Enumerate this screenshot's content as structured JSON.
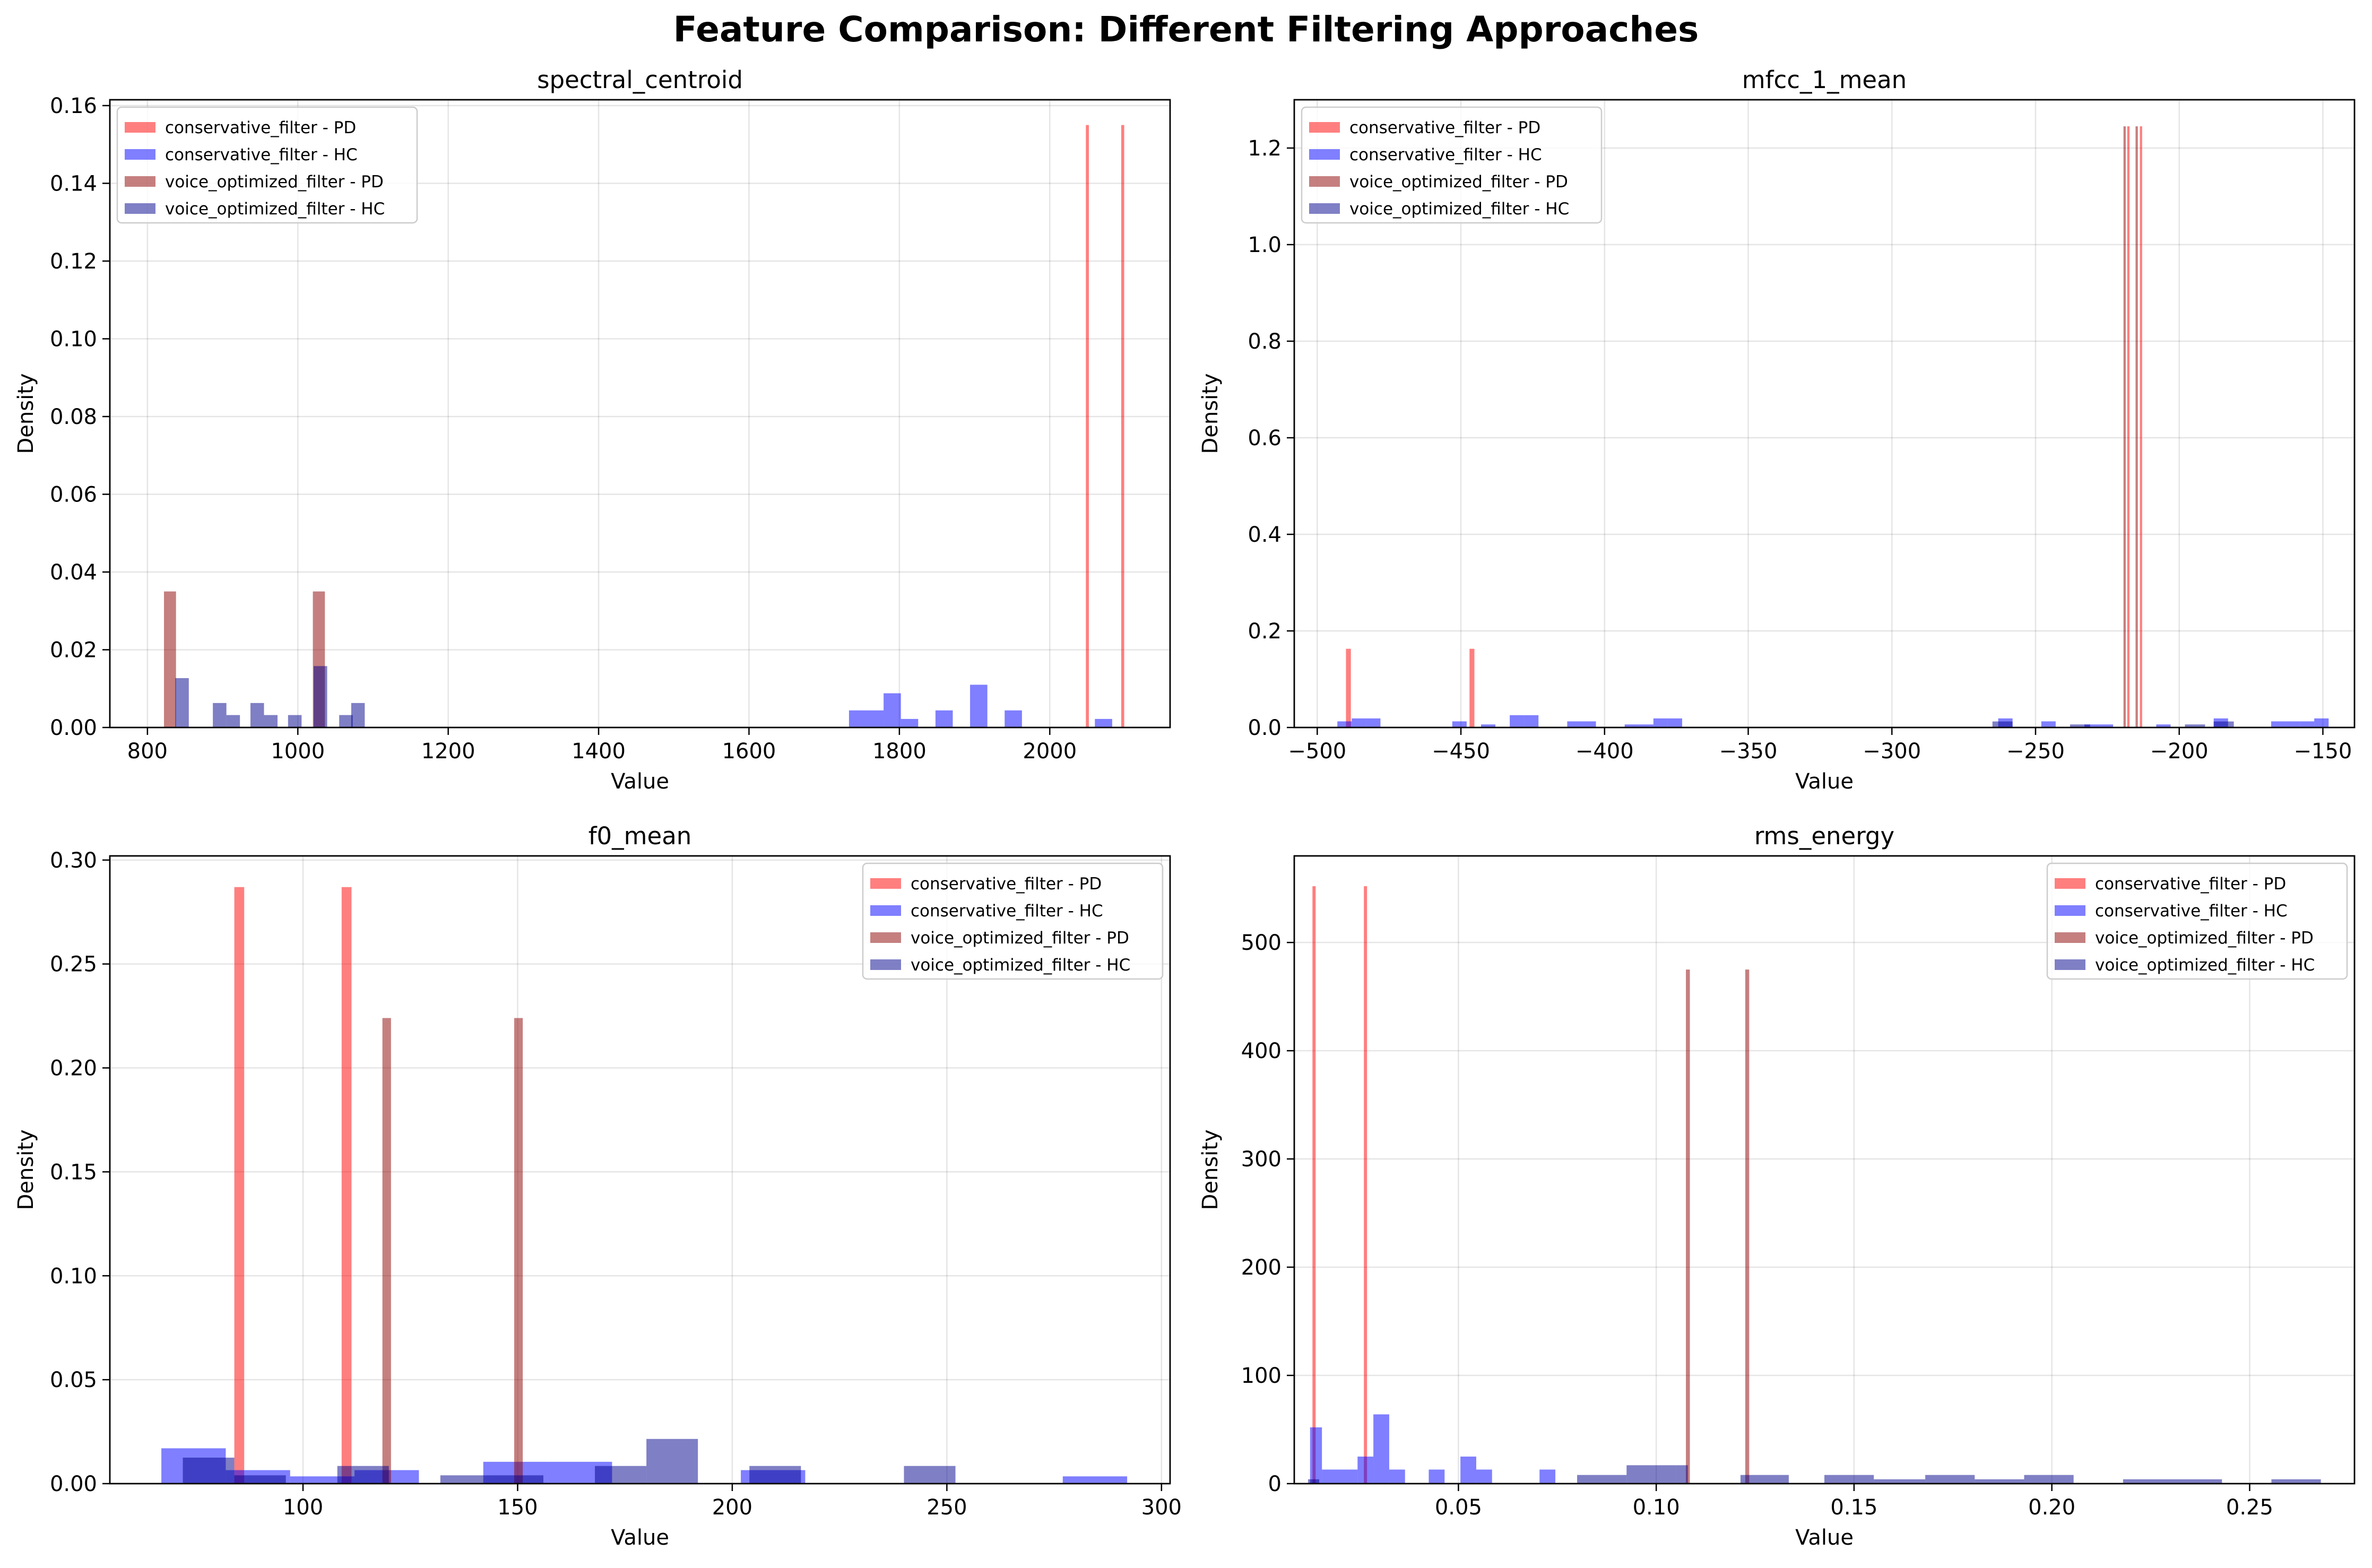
{
  "figure_title": "Feature Comparison: Different Filtering Approaches",
  "colors": {
    "conservative_PD": "#ff0000",
    "conservative_HC": "#0000ff",
    "voice_PD": "#8b0000",
    "voice_HC": "#00008b",
    "alpha": 0.5
  },
  "chart_data": [
    {
      "type": "bar",
      "title": "spectral_centroid",
      "xlabel": "Value",
      "ylabel": "Density",
      "xlim": [
        750,
        2160
      ],
      "ylim": [
        0,
        0.1615
      ],
      "xticks": [
        800,
        1000,
        1200,
        1400,
        1600,
        1800,
        2000
      ],
      "yticks": [
        0.0,
        0.02,
        0.04,
        0.06,
        0.08,
        0.1,
        0.12,
        0.14,
        0.16
      ],
      "ytick_labels": [
        "0.00",
        "0.02",
        "0.04",
        "0.06",
        "0.08",
        "0.10",
        "0.12",
        "0.14",
        "0.16"
      ],
      "grid": true,
      "legend_position": "top-left",
      "series": [
        {
          "name": "conservative_filter - PD",
          "color_key": "conservative_PD",
          "bins": [
            [
              2048,
              2052,
              0.155
            ],
            [
              2095,
              2099,
              0.155
            ]
          ]
        },
        {
          "name": "conservative_filter - HC",
          "color_key": "conservative_HC",
          "bins": [
            [
              1733,
              1756,
              0.0044
            ],
            [
              1756,
              1779,
              0.0044
            ],
            [
              1779,
              1802,
              0.0088
            ],
            [
              1802,
              1825,
              0.0022
            ],
            [
              1848,
              1871,
              0.0044
            ],
            [
              1894,
              1917,
              0.011
            ],
            [
              1940,
              1963,
              0.0044
            ],
            [
              2060,
              2083,
              0.0022
            ]
          ]
        },
        {
          "name": "voice_optimized_filter - PD",
          "color_key": "voice_PD",
          "bins": [
            [
              822,
              838,
              0.035
            ],
            [
              1020,
              1036,
              0.035
            ]
          ]
        },
        {
          "name": "voice_optimized_filter - HC",
          "color_key": "voice_HC",
          "bins": [
            [
              837,
              855,
              0.0127
            ],
            [
              887,
              905,
              0.0063
            ],
            [
              905,
              923,
              0.0032
            ],
            [
              937,
              955,
              0.0063
            ],
            [
              955,
              973,
              0.0032
            ],
            [
              987,
              1005,
              0.0032
            ],
            [
              1021,
              1039,
              0.0158
            ],
            [
              1055,
              1073,
              0.0032
            ],
            [
              1071,
              1089,
              0.0063
            ]
          ]
        }
      ]
    },
    {
      "type": "bar",
      "title": "mfcc_1_mean",
      "xlabel": "Value",
      "ylabel": "Density",
      "xlim": [
        -508,
        -139
      ],
      "ylim": [
        0,
        1.3
      ],
      "xticks": [
        -500,
        -450,
        -400,
        -350,
        -300,
        -250,
        -200,
        -150
      ],
      "xtick_labels": [
        "−500",
        "−450",
        "−400",
        "−350",
        "−300",
        "−250",
        "−200",
        "−150"
      ],
      "yticks": [
        0.0,
        0.2,
        0.4,
        0.6,
        0.8,
        1.0,
        1.2
      ],
      "ytick_labels": [
        "0.0",
        "0.2",
        "0.4",
        "0.6",
        "0.8",
        "1.0",
        "1.2"
      ],
      "grid": true,
      "legend_position": "top-left",
      "series": [
        {
          "name": "conservative_filter - PD",
          "color_key": "conservative_PD",
          "bins": [
            [
              -490,
              -488.3,
              0.163
            ],
            [
              -447,
              -445.3,
              0.163
            ],
            [
              -218.1,
              -217.3,
              1.245
            ],
            [
              -213.7,
              -212.9,
              1.245
            ]
          ]
        },
        {
          "name": "conservative_filter - HC",
          "color_key": "conservative_HC",
          "bins": [
            [
              -493,
              -488,
              0.0127
            ],
            [
              -488,
              -483,
              0.0188
            ],
            [
              -483,
              -478,
              0.0188
            ],
            [
              -453,
              -448,
              0.0127
            ],
            [
              -443,
              -438,
              0.0063
            ],
            [
              -433,
              -428,
              0.0255
            ],
            [
              -428,
              -423,
              0.0255
            ],
            [
              -413,
              -408,
              0.0127
            ],
            [
              -408,
              -403,
              0.0127
            ],
            [
              -393,
              -388,
              0.0063
            ],
            [
              -388,
              -383,
              0.0063
            ],
            [
              -383,
              -378,
              0.0188
            ],
            [
              -378,
              -373,
              0.0188
            ],
            [
              -263,
              -258,
              0.0188
            ],
            [
              -248,
              -243,
              0.0127
            ],
            [
              -233,
              -228,
              0.0063
            ],
            [
              -228,
              -223,
              0.0063
            ],
            [
              -208,
              -203,
              0.0063
            ],
            [
              -188,
              -183,
              0.0188
            ],
            [
              -168,
              -163,
              0.0127
            ],
            [
              -163,
              -158,
              0.0127
            ],
            [
              -158,
              -153,
              0.0127
            ],
            [
              -153,
              -148,
              0.0188
            ]
          ]
        },
        {
          "name": "voice_optimized_filter - PD",
          "color_key": "voice_PD",
          "bins": [
            [
              -219.4,
              -218.6,
              1.245
            ],
            [
              -215.2,
              -214.4,
              1.245
            ]
          ]
        },
        {
          "name": "voice_optimized_filter - HC",
          "color_key": "voice_HC",
          "bins": [
            [
              -265,
              -258,
              0.0125
            ],
            [
              -238,
              -231,
              0.0063
            ],
            [
              -198,
              -191,
              0.0063
            ],
            [
              -188,
              -181,
              0.0125
            ]
          ]
        }
      ]
    },
    {
      "type": "bar",
      "title": "f0_mean",
      "xlabel": "Value",
      "ylabel": "Density",
      "xlim": [
        55,
        302
      ],
      "ylim": [
        0,
        0.302
      ],
      "xticks": [
        100,
        150,
        200,
        250,
        300
      ],
      "yticks": [
        0.0,
        0.05,
        0.1,
        0.15,
        0.2,
        0.25,
        0.3
      ],
      "ytick_labels": [
        "0.00",
        "0.05",
        "0.10",
        "0.15",
        "0.20",
        "0.25",
        "0.30"
      ],
      "grid": true,
      "legend_position": "top-right",
      "series": [
        {
          "name": "conservative_filter - PD",
          "color_key": "conservative_PD",
          "bins": [
            [
              84,
              86.3,
              0.287
            ],
            [
              109,
              111.3,
              0.287
            ]
          ]
        },
        {
          "name": "conservative_filter - HC",
          "color_key": "conservative_HC",
          "bins": [
            [
              67,
              82,
              0.017
            ],
            [
              82,
              97,
              0.0065
            ],
            [
              97,
              112,
              0.0035
            ],
            [
              112,
              127,
              0.0065
            ],
            [
              142,
              157,
              0.0105
            ],
            [
              157,
              172,
              0.0105
            ],
            [
              202,
              217,
              0.0065
            ],
            [
              277,
              292,
              0.0035
            ]
          ]
        },
        {
          "name": "voice_optimized_filter - PD",
          "color_key": "voice_PD",
          "bins": [
            [
              118.5,
              120.5,
              0.224
            ],
            [
              149.2,
              151.2,
              0.224
            ]
          ]
        },
        {
          "name": "voice_optimized_filter - HC",
          "color_key": "voice_HC",
          "bins": [
            [
              72,
              84,
              0.0125
            ],
            [
              84,
              96,
              0.004
            ],
            [
              108,
              120,
              0.0085
            ],
            [
              132,
              144,
              0.004
            ],
            [
              144,
              156,
              0.004
            ],
            [
              168,
              180,
              0.0085
            ],
            [
              180,
              192,
              0.0215
            ],
            [
              204,
              216,
              0.0085
            ],
            [
              240,
              252,
              0.0085
            ]
          ]
        }
      ]
    },
    {
      "type": "bar",
      "title": "rms_energy",
      "xlabel": "Value",
      "ylabel": "Density",
      "xlim": [
        0.0085,
        0.2765
      ],
      "ylim": [
        0,
        580
      ],
      "xticks": [
        0.05,
        0.1,
        0.15,
        0.2,
        0.25
      ],
      "xtick_labels": [
        "0.05",
        "0.10",
        "0.15",
        "0.20",
        "0.25"
      ],
      "yticks": [
        0,
        100,
        200,
        300,
        400,
        500
      ],
      "grid": true,
      "legend_position": "top-right",
      "series": [
        {
          "name": "conservative_filter - PD",
          "color_key": "conservative_PD",
          "bins": [
            [
              0.0131,
              0.0139,
              552
            ],
            [
              0.0261,
              0.0269,
              552
            ]
          ]
        },
        {
          "name": "conservative_filter - HC",
          "color_key": "conservative_HC",
          "bins": [
            [
              0.0125,
              0.0155,
              52
            ],
            [
              0.0155,
              0.0245,
              13
            ],
            [
              0.0245,
              0.0285,
              25
            ],
            [
              0.0285,
              0.0325,
              64
            ],
            [
              0.0325,
              0.0365,
              13
            ],
            [
              0.0425,
              0.0465,
              13
            ],
            [
              0.0505,
              0.0545,
              25
            ],
            [
              0.0545,
              0.0585,
              13
            ],
            [
              0.0705,
              0.0745,
              13
            ]
          ]
        },
        {
          "name": "voice_optimized_filter - PD",
          "color_key": "voice_PD",
          "bins": [
            [
              0.1075,
              0.1085,
              475
            ],
            [
              0.1225,
              0.1235,
              475
            ]
          ]
        },
        {
          "name": "voice_optimized_filter - HC",
          "color_key": "voice_HC",
          "bins": [
            [
              0.012,
              0.0148,
              4
            ],
            [
              0.08,
              0.0925,
              8
            ],
            [
              0.0925,
              0.105,
              17
            ],
            [
              0.105,
              0.108,
              17
            ],
            [
              0.1213,
              0.1335,
              8
            ],
            [
              0.1425,
              0.155,
              8
            ],
            [
              0.155,
              0.168,
              4
            ],
            [
              0.168,
              0.1805,
              8
            ],
            [
              0.1805,
              0.193,
              4
            ],
            [
              0.193,
              0.2055,
              8
            ],
            [
              0.218,
              0.243,
              4
            ],
            [
              0.2555,
              0.268,
              4
            ]
          ]
        }
      ]
    }
  ]
}
